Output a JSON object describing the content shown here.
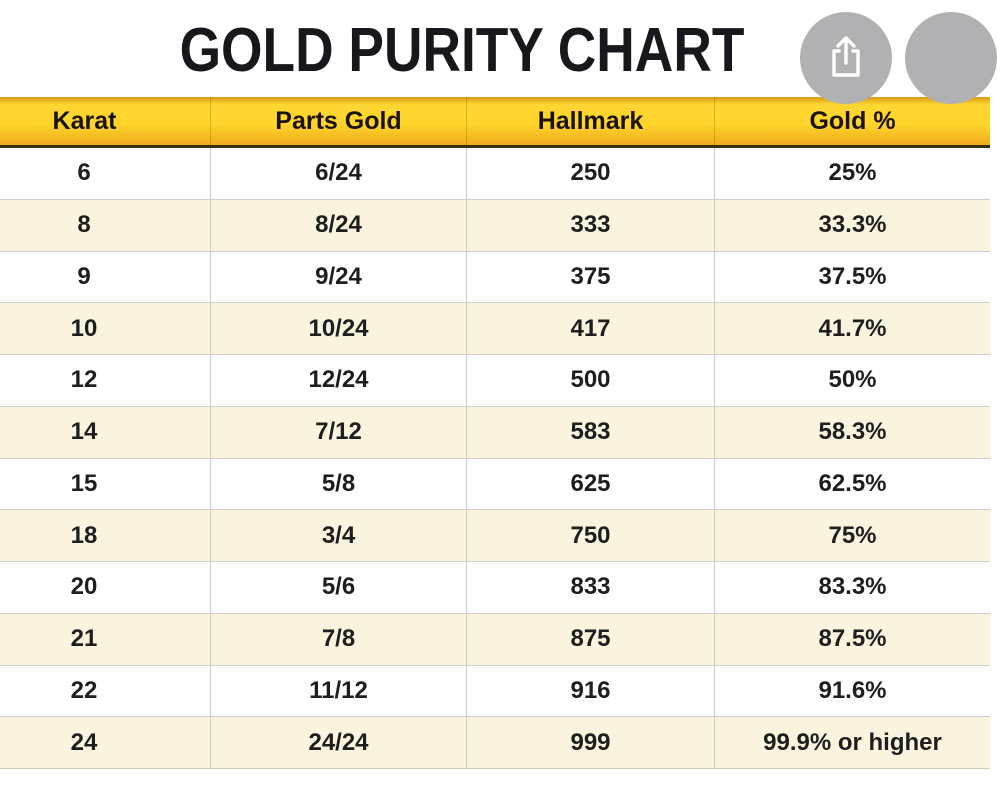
{
  "title": "GOLD PURITY CHART",
  "toolbar": {
    "share_icon": "ios-share-icon",
    "partial_button_icon": "cropped-circle-button"
  },
  "colors": {
    "titleColor": "#17171c",
    "headerYellow": "#ffd42b",
    "headerUnderline": "#35300f",
    "rowAltCream": "#faf3de",
    "iconCircleGray": "#b1b0b2"
  },
  "table": {
    "headers": [
      "Karat",
      "Parts Gold",
      "Hallmark",
      "Gold %"
    ],
    "rows": [
      [
        "6",
        "6/24",
        "250",
        "25%"
      ],
      [
        "8",
        "8/24",
        "333",
        "33.3%"
      ],
      [
        "9",
        "9/24",
        "375",
        "37.5%"
      ],
      [
        "10",
        "10/24",
        "417",
        "41.7%"
      ],
      [
        "12",
        "12/24",
        "500",
        "50%"
      ],
      [
        "14",
        "7/12",
        "583",
        "58.3%"
      ],
      [
        "15",
        "5/8",
        "625",
        "62.5%"
      ],
      [
        "18",
        "3/4",
        "750",
        "75%"
      ],
      [
        "20",
        "5/6",
        "833",
        "83.3%"
      ],
      [
        "21",
        "7/8",
        "875",
        "87.5%"
      ],
      [
        "22",
        "11/12",
        "916",
        "91.6%"
      ],
      [
        "24",
        "24/24",
        "999",
        "99.9% or higher"
      ]
    ]
  },
  "chart_data": {
    "type": "table",
    "title": "GOLD PURITY CHART",
    "columns": [
      "Karat",
      "Parts Gold",
      "Hallmark",
      "Gold %"
    ],
    "rows": [
      {
        "karat": 6,
        "parts_gold": "6/24",
        "hallmark": 250,
        "gold_percent": "25%"
      },
      {
        "karat": 8,
        "parts_gold": "8/24",
        "hallmark": 333,
        "gold_percent": "33.3%"
      },
      {
        "karat": 9,
        "parts_gold": "9/24",
        "hallmark": 375,
        "gold_percent": "37.5%"
      },
      {
        "karat": 10,
        "parts_gold": "10/24",
        "hallmark": 417,
        "gold_percent": "41.7%"
      },
      {
        "karat": 12,
        "parts_gold": "12/24",
        "hallmark": 500,
        "gold_percent": "50%"
      },
      {
        "karat": 14,
        "parts_gold": "7/12",
        "hallmark": 583,
        "gold_percent": "58.3%"
      },
      {
        "karat": 15,
        "parts_gold": "5/8",
        "hallmark": 625,
        "gold_percent": "62.5%"
      },
      {
        "karat": 18,
        "parts_gold": "3/4",
        "hallmark": 750,
        "gold_percent": "75%"
      },
      {
        "karat": 20,
        "parts_gold": "5/6",
        "hallmark": 833,
        "gold_percent": "83.3%"
      },
      {
        "karat": 21,
        "parts_gold": "7/8",
        "hallmark": 875,
        "gold_percent": "87.5%"
      },
      {
        "karat": 22,
        "parts_gold": "11/12",
        "hallmark": 916,
        "gold_percent": "91.6%"
      },
      {
        "karat": 24,
        "parts_gold": "24/24",
        "hallmark": 999,
        "gold_percent": "99.9% or higher"
      }
    ],
    "layout": "header row yellow, rows alternate white/cream, right edge of last column cropped by viewport"
  }
}
